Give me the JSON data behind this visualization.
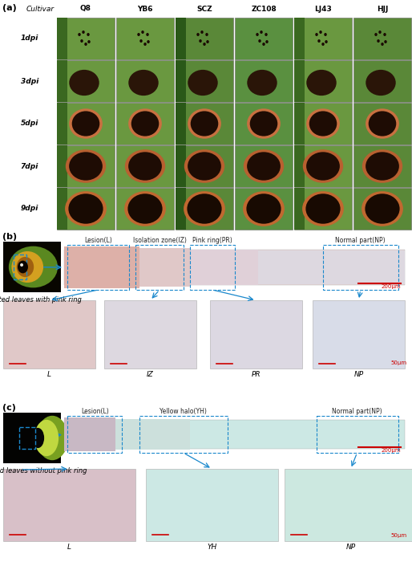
{
  "fig_width": 5.14,
  "fig_height": 7.0,
  "dpi": 100,
  "background_color": "#ffffff",
  "panel_a": {
    "label": "(a)",
    "cultivar_label": "Cultivar",
    "col_labels": [
      "Q8",
      "YB6",
      "SCZ",
      "ZC108",
      "LJ43",
      "HJJ"
    ],
    "row_labels": [
      "1dpi",
      "3dpi",
      "5dpi",
      "7dpi",
      "9dpi"
    ]
  },
  "panel_b": {
    "label": "(b)",
    "caption": "infected leaves with pink ring",
    "zone_labels": [
      "Lesion(L)",
      "Isolation zone(IZ)",
      "Pink ring(PR)",
      "Normal part(NP)"
    ],
    "magnified_labels": [
      "L",
      "IZ",
      "PR",
      "NP"
    ],
    "scale_bar_200": "200μm",
    "scale_bar_50": "50μm",
    "arrow_color": "#1a88cc",
    "dashed_box_color": "#1a88cc",
    "scale_bar_color": "#cc0000"
  },
  "panel_c": {
    "label": "(c)",
    "caption": "infected leaves without pink ring",
    "zone_labels": [
      "Lesion(L)",
      "Yellow halo(YH)",
      "Normal part(NP)"
    ],
    "magnified_labels": [
      "L",
      "YH",
      "NP"
    ],
    "scale_bar_200": "200μm",
    "scale_bar_50": "50μm",
    "arrow_color": "#1a88cc",
    "dashed_box_color": "#1a88cc",
    "scale_bar_color": "#cc0000"
  },
  "font_sizes": {
    "panel_label": 8,
    "cultivar_label": 6.5,
    "col_label": 6.5,
    "row_label": 6.5,
    "zone_label": 5.5,
    "caption": 6,
    "mag_label": 6.5,
    "scale_label": 5
  }
}
